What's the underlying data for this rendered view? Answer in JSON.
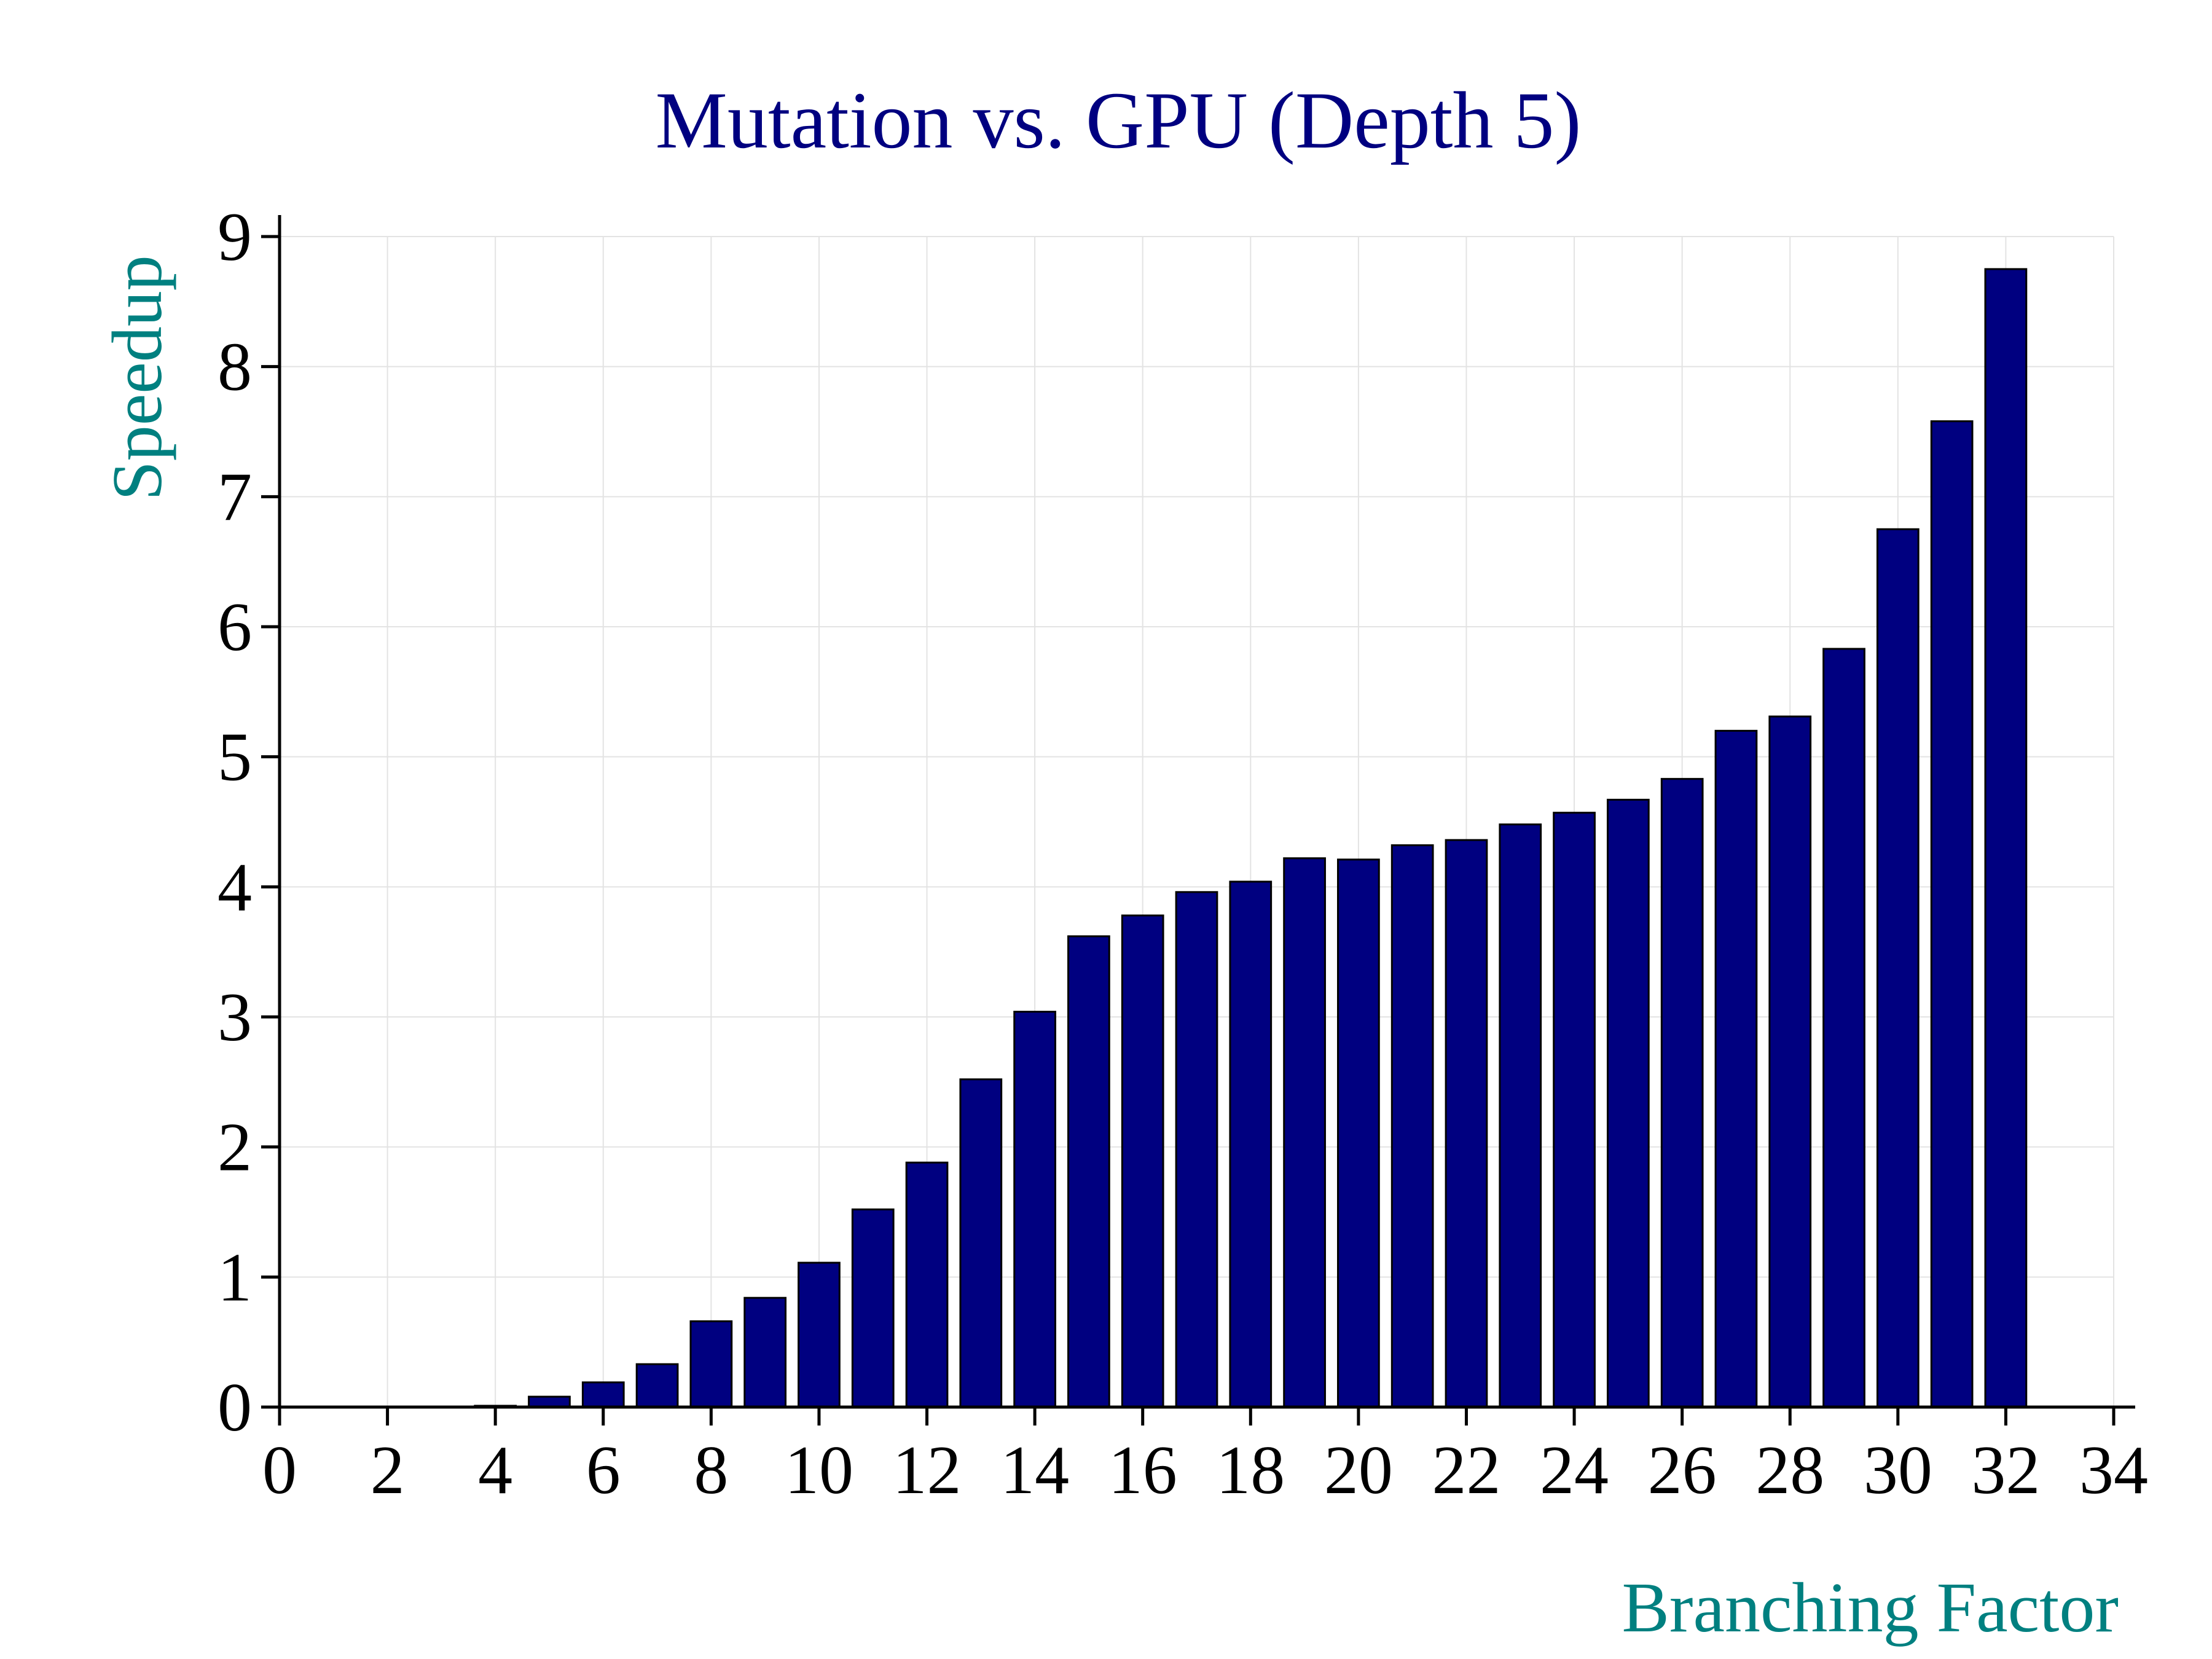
{
  "chart_data": {
    "type": "bar",
    "title": "Mutation vs. GPU (Depth 5)",
    "xlabel": "Branching Factor",
    "ylabel": "Speedup",
    "x": [
      2,
      3,
      4,
      5,
      6,
      7,
      8,
      9,
      10,
      11,
      12,
      13,
      14,
      15,
      16,
      17,
      18,
      19,
      20,
      21,
      22,
      23,
      24,
      25,
      26,
      27,
      28,
      29,
      30,
      31,
      32
    ],
    "values": [
      0.0,
      0.0,
      0.01,
      0.08,
      0.19,
      0.33,
      0.66,
      0.84,
      1.11,
      1.52,
      1.88,
      2.52,
      3.04,
      3.62,
      3.78,
      3.96,
      4.04,
      4.22,
      4.21,
      4.32,
      4.36,
      4.48,
      4.57,
      4.67,
      4.83,
      5.2,
      5.31,
      5.83,
      6.75,
      7.58,
      8.75
    ],
    "xlim": [
      0,
      34
    ],
    "ylim": [
      0,
      9
    ],
    "xticks": [
      0,
      2,
      4,
      6,
      8,
      10,
      12,
      14,
      16,
      18,
      20,
      22,
      24,
      26,
      28,
      30,
      32,
      34
    ],
    "yticks": [
      0,
      1,
      2,
      3,
      4,
      5,
      6,
      7,
      8,
      9
    ],
    "grid": true,
    "colors": {
      "bar_fill": "#000080",
      "bar_edge": "#000000",
      "title": "#000080",
      "axis_label": "#008080",
      "tick_label": "#000000",
      "grid": "#e3e3e3"
    }
  }
}
